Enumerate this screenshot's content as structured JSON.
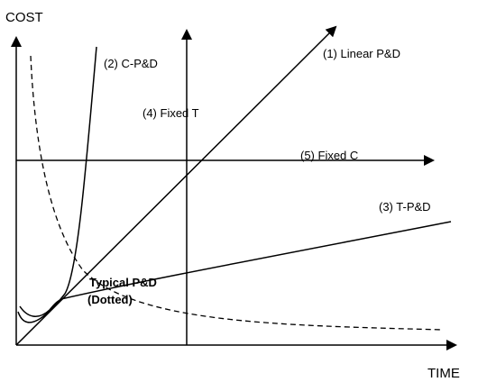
{
  "axes": {
    "y_label": "COST",
    "x_label": "TIME"
  },
  "curves": {
    "linear": "(1) Linear P&D",
    "c_pd": "(2) C-P&D",
    "t_pd": "(3) T-P&D",
    "fixed_t": "(4) Fixed T",
    "fixed_c": "(5) Fixed C",
    "typical_line1": "Typical P&D",
    "typical_line2": "(Dotted)"
  }
}
